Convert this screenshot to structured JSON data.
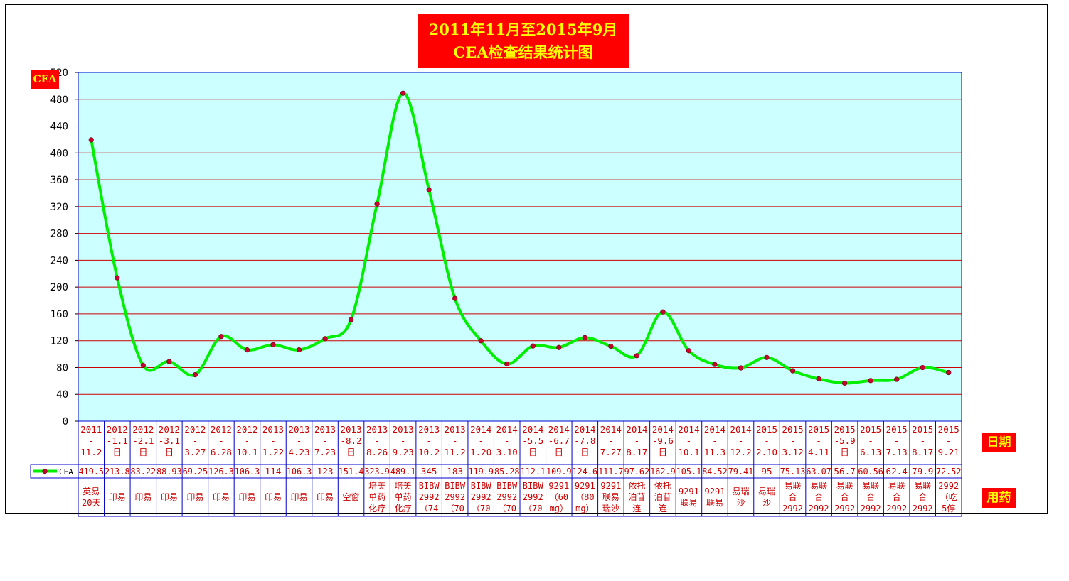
{
  "title_line1": "2011年11月至2015年9月",
  "title_line2": "CEA检查结果统计图",
  "y_axis_label": "CEA",
  "x_axis_label": "日期",
  "drug_row_label": "用药",
  "chart_data": {
    "type": "line",
    "title": "2011年11月至2015年9月 CEA检查结果统计图",
    "ylabel": "CEA",
    "xlabel": "日期",
    "ylim": [
      0,
      520
    ],
    "yticks": [
      0,
      40,
      80,
      120,
      160,
      200,
      240,
      280,
      320,
      360,
      400,
      440,
      480,
      520
    ],
    "ytick_labels": [
      "0",
      "40",
      "80",
      "120",
      "160",
      "200",
      "240",
      "280",
      "320",
      "360",
      "400",
      "440",
      "480",
      "520"
    ],
    "grid": true,
    "legend": "left-of-data-row",
    "series": [
      {
        "name": "CEA",
        "color": "#00ee00",
        "marker_color": "#cc0033",
        "values": [
          419.5,
          213.8,
          83.22,
          88.93,
          69.25,
          126.3,
          106.3,
          114,
          106.3,
          123,
          151.4,
          323.9,
          489.1,
          345,
          183,
          119.9,
          85.28,
          112.1,
          109.9,
          124.6,
          111.7,
          97.62,
          162.9,
          105.1,
          84.52,
          79.41,
          95,
          75.13,
          63.07,
          56.7,
          60.56,
          62.4,
          79.9,
          72.52
        ]
      }
    ],
    "categories": [
      [
        "2011",
        "-",
        "11.2"
      ],
      [
        "2012",
        "-1.1",
        "日"
      ],
      [
        "2012",
        "-2.1",
        "日"
      ],
      [
        "2012",
        "-3.1",
        "日"
      ],
      [
        "2012",
        "-",
        "3.27"
      ],
      [
        "2012",
        "-",
        "6.28"
      ],
      [
        "2012",
        "-",
        "10.1"
      ],
      [
        "2013",
        "-",
        "1.22"
      ],
      [
        "2013",
        "-",
        "4.23"
      ],
      [
        "2013",
        "-",
        "7.23"
      ],
      [
        "2013",
        "-8.2",
        "日"
      ],
      [
        "2013",
        "-",
        "8.26"
      ],
      [
        "2013",
        "-",
        "9.23"
      ],
      [
        "2013",
        "-",
        "10.2"
      ],
      [
        "2013",
        "-",
        "11.2"
      ],
      [
        "2014",
        "-",
        "1.20"
      ],
      [
        "2014",
        "-",
        "3.10"
      ],
      [
        "2014",
        "-5.5",
        "日"
      ],
      [
        "2014",
        "-6.7",
        "日"
      ],
      [
        "2014",
        "-7.8",
        "日"
      ],
      [
        "2014",
        "-",
        "7.27"
      ],
      [
        "2014",
        "-",
        "8.17"
      ],
      [
        "2014",
        "-9.6",
        "日"
      ],
      [
        "2014",
        "-",
        "10.1"
      ],
      [
        "2014",
        "-",
        "11.3"
      ],
      [
        "2014",
        "-",
        "12.2"
      ],
      [
        "2015",
        "-",
        "2.10"
      ],
      [
        "2015",
        "-",
        "3.12"
      ],
      [
        "2015",
        "-",
        "4.11"
      ],
      [
        "2015",
        "-5.9",
        "日"
      ],
      [
        "2015",
        "-",
        "6.13"
      ],
      [
        "2015",
        "-",
        "7.13"
      ],
      [
        "2015",
        "-",
        "8.17"
      ],
      [
        "2015",
        "-",
        "9.21"
      ]
    ],
    "value_labels": [
      "419.5",
      "213.8",
      "83.22",
      "88.93",
      "69.25",
      "126.3",
      "106.3",
      "114",
      "106.3",
      "123",
      "151.4",
      "323.9",
      "489.1",
      "345",
      "183",
      "119.9",
      "85.28",
      "112.1",
      "109.9",
      "124.6",
      "111.7",
      "97.62",
      "162.9",
      "105.1",
      "84.52",
      "79.41",
      "95",
      "75.13",
      "63.07",
      "56.7",
      "60.56",
      "62.4",
      "79.9",
      "72.52"
    ],
    "drug_labels": [
      [
        "英易",
        "20天"
      ],
      [
        "印易"
      ],
      [
        "印易"
      ],
      [
        "印易"
      ],
      [
        "印易"
      ],
      [
        "印易"
      ],
      [
        "印易"
      ],
      [
        "印易"
      ],
      [
        "印易"
      ],
      [
        "印易"
      ],
      [
        "空窗"
      ],
      [
        "培美",
        "单药",
        "化疗"
      ],
      [
        "培美",
        "单药",
        "化疗"
      ],
      [
        "BIBW",
        "2992",
        "（74"
      ],
      [
        "BIBW",
        "2992",
        "（70"
      ],
      [
        "BIBW",
        "2992",
        "（70"
      ],
      [
        "BIBW",
        "2992",
        "（70"
      ],
      [
        "BIBW",
        "2992",
        "（70"
      ],
      [
        "9291",
        "（60",
        "mg）"
      ],
      [
        "9291",
        "（80",
        "mg）"
      ],
      [
        "9291",
        "联易",
        "瑞沙"
      ],
      [
        "依托",
        "泊苷",
        "连"
      ],
      [
        "依托",
        "泊苷",
        "连"
      ],
      [
        "9291",
        "联易"
      ],
      [
        "9291",
        "联易"
      ],
      [
        "易瑞",
        "沙"
      ],
      [
        "易瑞",
        "沙"
      ],
      [
        "易联",
        "合",
        "2992"
      ],
      [
        "易联",
        "合",
        "2992"
      ],
      [
        "易联",
        "合",
        "2992"
      ],
      [
        "易联",
        "合",
        "2992"
      ],
      [
        "易联",
        "合",
        "2992"
      ],
      [
        "易联",
        "合",
        "2992"
      ],
      [
        "2992",
        "（吃",
        "5停"
      ]
    ]
  }
}
